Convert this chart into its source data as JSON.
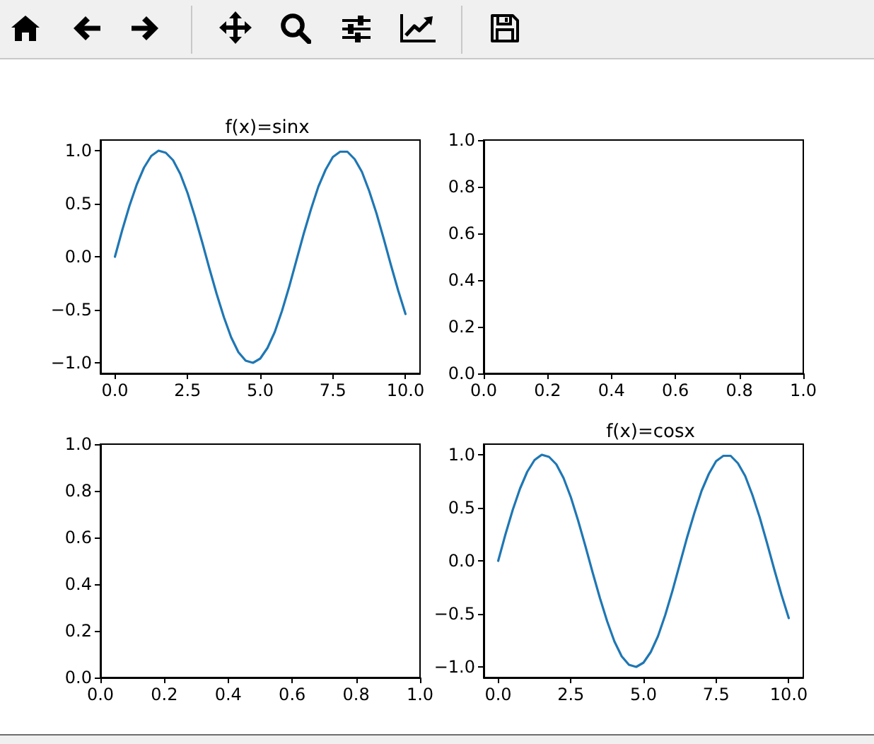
{
  "chart_data": [
    {
      "type": "line",
      "title": "f(x)=sinx",
      "x": [
        0,
        0.25,
        0.5,
        0.75,
        1,
        1.25,
        1.5,
        1.75,
        2,
        2.25,
        2.5,
        2.75,
        3,
        3.25,
        3.5,
        3.75,
        4,
        4.25,
        4.5,
        4.75,
        5,
        5.25,
        5.5,
        5.75,
        6,
        6.25,
        6.5,
        6.75,
        7,
        7.25,
        7.5,
        7.75,
        8,
        8.25,
        8.5,
        8.75,
        9,
        9.25,
        9.5,
        9.75,
        10
      ],
      "series": [
        {
          "color": "#1f77b4",
          "values": [
            0,
            0.25,
            0.48,
            0.68,
            0.84,
            0.95,
            1.0,
            0.98,
            0.91,
            0.78,
            0.6,
            0.38,
            0.14,
            -0.11,
            -0.35,
            -0.57,
            -0.76,
            -0.9,
            -0.98,
            -1.0,
            -0.96,
            -0.86,
            -0.71,
            -0.51,
            -0.28,
            -0.03,
            0.22,
            0.45,
            0.66,
            0.82,
            0.94,
            0.99,
            0.99,
            0.92,
            0.8,
            0.62,
            0.41,
            0.17,
            -0.08,
            -0.32,
            -0.54
          ]
        }
      ],
      "xlim": [
        -0.5,
        10.5
      ],
      "ylim": [
        -1.1,
        1.1
      ],
      "xticks": [
        {
          "value": 0,
          "label": "0.0"
        },
        {
          "value": 2.5,
          "label": "2.5"
        },
        {
          "value": 5,
          "label": "5.0"
        },
        {
          "value": 7.5,
          "label": "7.5"
        },
        {
          "value": 10,
          "label": "10.0"
        }
      ],
      "yticks": [
        {
          "value": -1,
          "label": "−1.0"
        },
        {
          "value": -0.5,
          "label": "−0.5"
        },
        {
          "value": 0,
          "label": "0.0"
        },
        {
          "value": 0.5,
          "label": "0.5"
        },
        {
          "value": 1,
          "label": "1.0"
        }
      ],
      "marker": "none",
      "line_style": "solid"
    },
    {
      "type": "line",
      "xlim": [
        0,
        1
      ],
      "ylim": [
        0,
        1
      ],
      "xticks": [
        {
          "value": 0,
          "label": "0.0"
        },
        {
          "value": 0.2,
          "label": "0.2"
        },
        {
          "value": 0.4,
          "label": "0.4"
        },
        {
          "value": 0.6,
          "label": "0.6"
        },
        {
          "value": 0.8,
          "label": "0.8"
        },
        {
          "value": 1,
          "label": "1.0"
        }
      ],
      "yticks": [
        {
          "value": 0,
          "label": "0.0"
        },
        {
          "value": 0.2,
          "label": "0.2"
        },
        {
          "value": 0.4,
          "label": "0.4"
        },
        {
          "value": 0.6,
          "label": "0.6"
        },
        {
          "value": 0.8,
          "label": "0.8"
        },
        {
          "value": 1,
          "label": "1.0"
        }
      ]
    },
    {
      "type": "line",
      "xlim": [
        0,
        1
      ],
      "ylim": [
        0,
        1
      ],
      "xticks": [
        {
          "value": 0,
          "label": "0.0"
        },
        {
          "value": 0.2,
          "label": "0.2"
        },
        {
          "value": 0.4,
          "label": "0.4"
        },
        {
          "value": 0.6,
          "label": "0.6"
        },
        {
          "value": 0.8,
          "label": "0.8"
        },
        {
          "value": 1,
          "label": "1.0"
        }
      ],
      "yticks": [
        {
          "value": 0,
          "label": "0.0"
        },
        {
          "value": 0.2,
          "label": "0.2"
        },
        {
          "value": 0.4,
          "label": "0.4"
        },
        {
          "value": 0.6,
          "label": "0.6"
        },
        {
          "value": 0.8,
          "label": "0.8"
        },
        {
          "value": 1,
          "label": "1.0"
        }
      ]
    },
    {
      "type": "line",
      "title": "f(x)=cosx",
      "x": [
        0,
        0.25,
        0.5,
        0.75,
        1,
        1.25,
        1.5,
        1.75,
        2,
        2.25,
        2.5,
        2.75,
        3,
        3.25,
        3.5,
        3.75,
        4,
        4.25,
        4.5,
        4.75,
        5,
        5.25,
        5.5,
        5.75,
        6,
        6.25,
        6.5,
        6.75,
        7,
        7.25,
        7.5,
        7.75,
        8,
        8.25,
        8.5,
        8.75,
        9,
        9.25,
        9.5,
        9.75,
        10
      ],
      "series": [
        {
          "color": "#1f77b4",
          "values": [
            0,
            0.25,
            0.48,
            0.68,
            0.84,
            0.95,
            1.0,
            0.98,
            0.91,
            0.78,
            0.6,
            0.38,
            0.14,
            -0.11,
            -0.35,
            -0.57,
            -0.76,
            -0.9,
            -0.98,
            -1.0,
            -0.96,
            -0.86,
            -0.71,
            -0.51,
            -0.28,
            -0.03,
            0.22,
            0.45,
            0.66,
            0.82,
            0.94,
            0.99,
            0.99,
            0.92,
            0.8,
            0.62,
            0.41,
            0.17,
            -0.08,
            -0.32,
            -0.54
          ]
        }
      ],
      "xlim": [
        -0.5,
        10.5
      ],
      "ylim": [
        -1.1,
        1.1
      ],
      "xticks": [
        {
          "value": 0,
          "label": "0.0"
        },
        {
          "value": 2.5,
          "label": "2.5"
        },
        {
          "value": 5,
          "label": "5.0"
        },
        {
          "value": 7.5,
          "label": "7.5"
        },
        {
          "value": 10,
          "label": "10.0"
        }
      ],
      "yticks": [
        {
          "value": -1,
          "label": "−1.0"
        },
        {
          "value": -0.5,
          "label": "−0.5"
        },
        {
          "value": 0,
          "label": "0.0"
        },
        {
          "value": 0.5,
          "label": "0.5"
        },
        {
          "value": 1,
          "label": "1.0"
        }
      ],
      "marker": "none",
      "line_style": "solid"
    }
  ]
}
